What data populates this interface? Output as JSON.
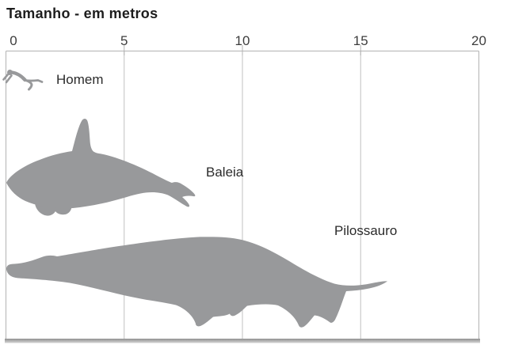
{
  "title": "Tamanho - em metros",
  "chart_data": {
    "type": "pictorial-size-comparison",
    "title": "Tamanho - em metros",
    "unit": "metros",
    "axis": {
      "orientation": "horizontal-top",
      "min": 0,
      "max": 20,
      "ticks": [
        0,
        5,
        10,
        15,
        20
      ]
    },
    "grid": true,
    "figures": [
      {
        "label": "Homem",
        "silhouette": "swimming-man",
        "approx_length_m": 1.6
      },
      {
        "label": "Baleia",
        "silhouette": "orca-whale",
        "approx_length_m": 8.0
      },
      {
        "label": "Pilossauro",
        "silhouette": "pliosaur",
        "approx_length_m": 16.2
      }
    ]
  },
  "colors": {
    "silhouette": "#98999b",
    "grid_line": "#c0c0c0",
    "border": "#b3b3b3",
    "baseline_dark": "#8f8f8f",
    "baseline_light": "#d6d6d6",
    "title_text": "#1d1d1d",
    "tick_text": "#3d3d3d",
    "label_text": "#2b2b2b"
  }
}
